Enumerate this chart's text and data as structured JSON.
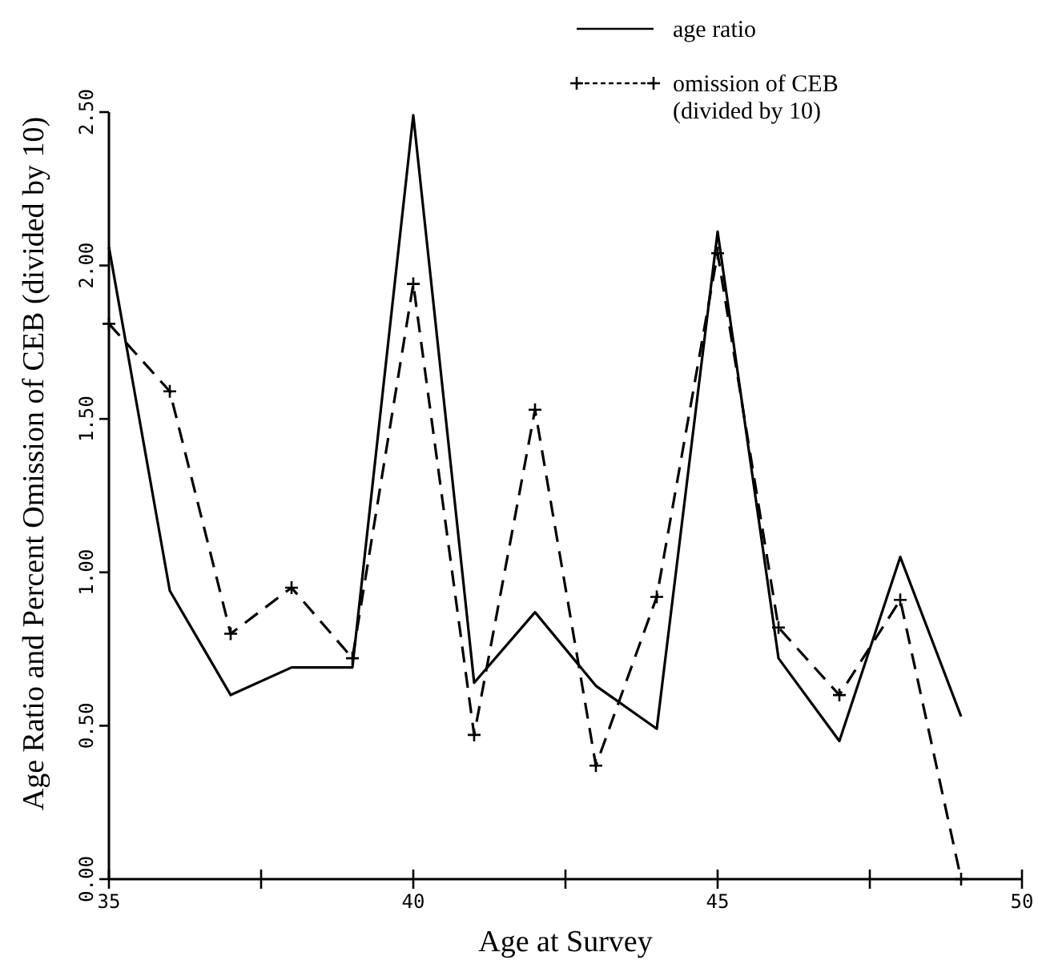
{
  "chart_data": {
    "type": "line",
    "xlabel": "Age at Survey",
    "ylabel": "Age Ratio and Percent Omission of CEB (divided by 10)",
    "x": [
      35,
      36,
      37,
      38,
      39,
      40,
      41,
      42,
      43,
      44,
      45,
      46,
      47,
      48,
      49
    ],
    "series": [
      {
        "name": "age ratio",
        "color": "#000000",
        "line_style": "solid",
        "marker": "none",
        "values": [
          2.06,
          0.94,
          0.6,
          0.69,
          0.69,
          2.49,
          0.64,
          0.87,
          0.63,
          0.49,
          2.11,
          0.72,
          0.45,
          1.05,
          0.53
        ]
      },
      {
        "name": "omission of CEB (divided by 10)",
        "color": "#000000",
        "line_style": "dashed",
        "marker": "cross",
        "values": [
          1.81,
          1.59,
          0.8,
          0.95,
          0.72,
          1.94,
          0.47,
          1.53,
          0.37,
          0.92,
          2.04,
          0.82,
          0.6,
          0.91,
          0.0
        ]
      }
    ],
    "xlim": [
      35,
      50
    ],
    "xticks": [
      35,
      {
        "value": 37.5,
        "label": null
      },
      40,
      {
        "value": 42.5,
        "label": null
      },
      45,
      {
        "value": 47.5,
        "label": null
      },
      50
    ],
    "ylim": [
      0,
      2.5
    ],
    "yticks": [
      {
        "value": 0,
        "label": "0.00"
      },
      {
        "value": 0.5,
        "label": "0.50"
      },
      {
        "value": 1,
        "label": "1.00"
      },
      {
        "value": 1.5,
        "label": "1.50"
      },
      {
        "value": 2,
        "label": "2.00"
      },
      {
        "value": 2.5,
        "label": "2.50"
      }
    ],
    "grid": false,
    "legend": "top right"
  }
}
